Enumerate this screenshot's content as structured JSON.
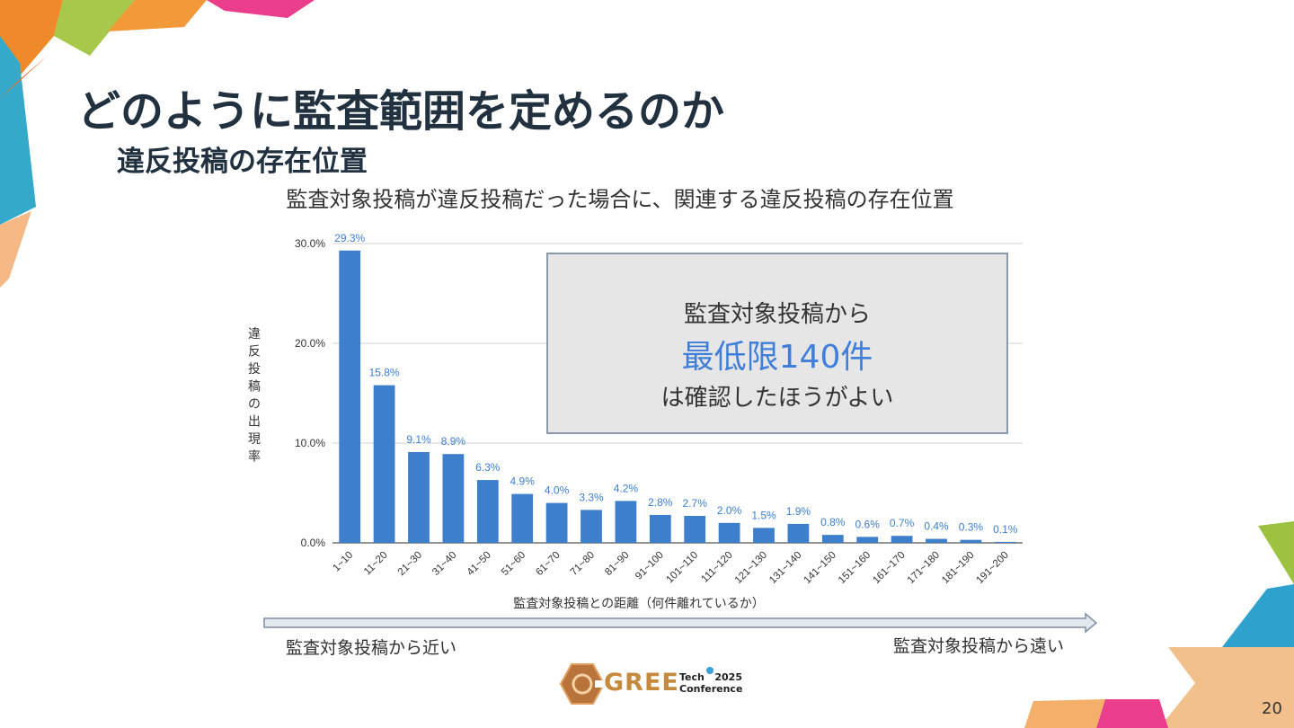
{
  "slide": {
    "title": "どのように監査範囲を定めるのか",
    "subtitle": "違反投稿の存在位置",
    "page_number": "20"
  },
  "callout": {
    "line1": "監査対象投稿から",
    "line2": "最低限140件",
    "line3": "は確認したほうがよい"
  },
  "arrow": {
    "near_label": "監査対象投稿から近い",
    "far_label": "監査対象投稿から遠い"
  },
  "logo": {
    "brand": "GREE",
    "tech": "Tech",
    "year": "2025",
    "conference": "Conference"
  },
  "colors": {
    "bar": "#3d7fcc",
    "label": "#3d7fcc",
    "accent": "#3f7fd9"
  },
  "chart_data": {
    "type": "bar",
    "title": "監査対象投稿が違反投稿だった場合に、関連する違反投稿の存在位置",
    "xlabel": "監査対象投稿との距離（何件離れているか）",
    "ylabel": "違反投稿の出現率",
    "ylim": [
      0,
      30
    ],
    "yticks": [
      "0.0%",
      "10.0%",
      "20.0%",
      "30.0%"
    ],
    "grid": true,
    "categories": [
      "1~10",
      "11~20",
      "21~30",
      "31~40",
      "41~50",
      "51~60",
      "61~70",
      "71~80",
      "81~90",
      "91~100",
      "101~110",
      "111~120",
      "121~130",
      "131~140",
      "141~150",
      "151~160",
      "161~170",
      "171~180",
      "181~190",
      "191~200"
    ],
    "values": [
      29.3,
      15.8,
      9.1,
      8.9,
      6.3,
      4.9,
      4.0,
      3.3,
      4.2,
      2.8,
      2.7,
      2.0,
      1.5,
      1.9,
      0.8,
      0.6,
      0.7,
      0.4,
      0.3,
      0.1
    ],
    "data_labels": [
      "29.3%",
      "15.8%",
      "9.1%",
      "8.9%",
      "6.3%",
      "4.9%",
      "4.0%",
      "3.3%",
      "4.2%",
      "2.8%",
      "2.7%",
      "2.0%",
      "1.5%",
      "1.9%",
      "0.8%",
      "0.6%",
      "0.7%",
      "0.4%",
      "0.3%",
      "0.1%"
    ]
  }
}
